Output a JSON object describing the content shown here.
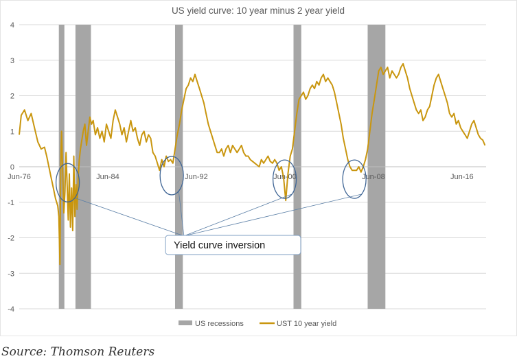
{
  "chart_data": {
    "type": "line",
    "title": "US yield curve: 10 year minus 2 year yield",
    "xlabel": "",
    "ylabel": "",
    "ylim": [
      -4,
      4
    ],
    "y_ticks": [
      4,
      3,
      2,
      1,
      0,
      -1,
      -2,
      -3,
      -4
    ],
    "x_ticks": [
      "Jun-76",
      "Jun-84",
      "Jun-92",
      "Jun-00",
      "Jun-08",
      "Jun-16"
    ],
    "x_tick_years": [
      1976.42,
      1984.42,
      1992.42,
      2000.42,
      2008.42,
      2016.42
    ],
    "xlim": [
      1976.42,
      2018.6
    ],
    "grid": true,
    "legend_position": "bottom",
    "recessions": [
      {
        "start": 1980.0,
        "end": 1980.5
      },
      {
        "start": 1981.5,
        "end": 1982.9
      },
      {
        "start": 1990.5,
        "end": 1991.2
      },
      {
        "start": 2001.2,
        "end": 2001.9
      },
      {
        "start": 2007.9,
        "end": 2009.5
      }
    ],
    "series": [
      {
        "name": "UST 10 year yield",
        "color": "#C9960F",
        "x": [
          1976.42,
          1976.6,
          1976.9,
          1977.2,
          1977.5,
          1977.8,
          1978.1,
          1978.4,
          1978.7,
          1978.9,
          1979.1,
          1979.3,
          1979.5,
          1979.7,
          1979.9,
          1980.0,
          1980.1,
          1980.15,
          1980.2,
          1980.25,
          1980.35,
          1980.45,
          1980.55,
          1980.65,
          1980.75,
          1980.85,
          1980.95,
          1981.05,
          1981.15,
          1981.25,
          1981.35,
          1981.45,
          1981.55,
          1981.65,
          1981.75,
          1981.85,
          1981.95,
          1982.05,
          1982.2,
          1982.35,
          1982.5,
          1982.65,
          1982.8,
          1982.95,
          1983.1,
          1983.3,
          1983.5,
          1983.7,
          1983.9,
          1984.1,
          1984.3,
          1984.5,
          1984.7,
          1984.9,
          1985.1,
          1985.3,
          1985.5,
          1985.7,
          1985.9,
          1986.1,
          1986.3,
          1986.5,
          1986.7,
          1986.9,
          1987.1,
          1987.3,
          1987.5,
          1987.7,
          1987.9,
          1988.1,
          1988.3,
          1988.5,
          1988.7,
          1988.9,
          1989.1,
          1989.3,
          1989.5,
          1989.7,
          1989.9,
          1990.1,
          1990.3,
          1990.5,
          1990.7,
          1990.9,
          1991.1,
          1991.3,
          1991.5,
          1991.7,
          1991.9,
          1992.1,
          1992.3,
          1992.5,
          1992.7,
          1992.9,
          1993.1,
          1993.3,
          1993.5,
          1993.7,
          1993.9,
          1994.1,
          1994.3,
          1994.5,
          1994.7,
          1994.9,
          1995.1,
          1995.3,
          1995.5,
          1995.7,
          1995.9,
          1996.1,
          1996.3,
          1996.5,
          1996.7,
          1996.9,
          1997.1,
          1997.3,
          1997.5,
          1997.7,
          1997.9,
          1998.1,
          1998.3,
          1998.5,
          1998.7,
          1998.9,
          1999.1,
          1999.3,
          1999.5,
          1999.7,
          1999.9,
          2000.1,
          2000.3,
          2000.5,
          2000.7,
          2000.9,
          2001.1,
          2001.3,
          2001.5,
          2001.7,
          2001.9,
          2002.1,
          2002.3,
          2002.5,
          2002.7,
          2002.9,
          2003.1,
          2003.3,
          2003.5,
          2003.7,
          2003.9,
          2004.1,
          2004.3,
          2004.5,
          2004.7,
          2004.9,
          2005.1,
          2005.3,
          2005.5,
          2005.7,
          2005.9,
          2006.1,
          2006.3,
          2006.5,
          2006.7,
          2006.9,
          2007.1,
          2007.3,
          2007.5,
          2007.7,
          2007.9,
          2008.1,
          2008.3,
          2008.5,
          2008.7,
          2008.9,
          2009.1,
          2009.3,
          2009.5,
          2009.7,
          2009.9,
          2010.1,
          2010.3,
          2010.5,
          2010.7,
          2010.9,
          2011.1,
          2011.3,
          2011.5,
          2011.7,
          2011.9,
          2012.1,
          2012.3,
          2012.5,
          2012.7,
          2012.9,
          2013.1,
          2013.3,
          2013.5,
          2013.7,
          2013.9,
          2014.1,
          2014.3,
          2014.5,
          2014.7,
          2014.9,
          2015.1,
          2015.3,
          2015.5,
          2015.7,
          2015.9,
          2016.1,
          2016.3,
          2016.5,
          2016.7,
          2016.9,
          2017.1,
          2017.3,
          2017.5,
          2017.7,
          2017.9,
          2018.1,
          2018.3,
          2018.5
        ],
        "y": [
          0.9,
          1.45,
          1.6,
          1.3,
          1.5,
          1.1,
          0.7,
          0.5,
          0.55,
          0.3,
          0.0,
          -0.3,
          -0.6,
          -0.9,
          -1.1,
          -1.4,
          -2.75,
          -0.8,
          0.5,
          1.0,
          -0.2,
          -1.3,
          -0.7,
          0.4,
          -0.5,
          -1.5,
          -0.2,
          -1.7,
          -0.6,
          -1.8,
          0.3,
          -1.4,
          -0.5,
          -1.2,
          -0.3,
          0.2,
          0.5,
          0.7,
          1.0,
          1.2,
          0.6,
          1.0,
          1.4,
          1.2,
          1.3,
          0.9,
          1.1,
          0.8,
          1.0,
          0.7,
          1.2,
          1.0,
          0.8,
          1.3,
          1.6,
          1.4,
          1.2,
          0.9,
          1.1,
          0.7,
          1.0,
          1.3,
          1.0,
          1.1,
          0.8,
          0.6,
          0.9,
          1.0,
          0.7,
          0.9,
          0.8,
          0.4,
          0.3,
          0.1,
          -0.1,
          0.2,
          0.0,
          0.3,
          0.15,
          0.2,
          0.1,
          0.5,
          0.9,
          1.2,
          1.6,
          1.9,
          2.2,
          2.3,
          2.5,
          2.4,
          2.6,
          2.4,
          2.2,
          2.0,
          1.8,
          1.5,
          1.2,
          1.0,
          0.8,
          0.6,
          0.4,
          0.4,
          0.5,
          0.3,
          0.5,
          0.6,
          0.4,
          0.6,
          0.5,
          0.4,
          0.5,
          0.6,
          0.4,
          0.3,
          0.3,
          0.2,
          0.15,
          0.1,
          0.05,
          0.0,
          0.2,
          0.1,
          0.2,
          0.3,
          0.15,
          0.1,
          0.2,
          0.1,
          -0.1,
          0.0,
          -0.3,
          -0.95,
          -0.2,
          0.3,
          0.5,
          1.0,
          1.5,
          1.9,
          2.0,
          2.1,
          1.9,
          2.0,
          2.2,
          2.3,
          2.2,
          2.4,
          2.3,
          2.5,
          2.6,
          2.4,
          2.5,
          2.4,
          2.3,
          2.1,
          1.8,
          1.5,
          1.2,
          0.8,
          0.5,
          0.2,
          0.0,
          -0.1,
          -0.1,
          -0.1,
          0.0,
          -0.15,
          0.0,
          0.2,
          0.5,
          1.0,
          1.5,
          1.9,
          2.3,
          2.7,
          2.8,
          2.6,
          2.7,
          2.8,
          2.5,
          2.7,
          2.6,
          2.5,
          2.6,
          2.8,
          2.9,
          2.7,
          2.5,
          2.2,
          2.0,
          1.8,
          1.6,
          1.5,
          1.6,
          1.3,
          1.4,
          1.6,
          1.7,
          2.0,
          2.3,
          2.5,
          2.6,
          2.4,
          2.2,
          2.0,
          1.8,
          1.5,
          1.4,
          1.5,
          1.2,
          1.3,
          1.1,
          1.0,
          0.9,
          0.8,
          1.0,
          1.2,
          1.3,
          1.1,
          0.9,
          0.8,
          0.75,
          0.6
        ]
      }
    ],
    "annotation": {
      "label": "Yield curve inversion",
      "ellipses": [
        {
          "x": 1980.8,
          "y": -0.45
        },
        {
          "x": 1990.2,
          "y": -0.25
        },
        {
          "x": 2000.4,
          "y": -0.35
        },
        {
          "x": 2006.7,
          "y": -0.35
        }
      ],
      "anchor": {
        "x": 1991.3,
        "y": -1.95
      }
    }
  },
  "legend": {
    "recessions_label": "US recessions",
    "recessions_color": "#A6A6A6",
    "line_label": "UST 10 year yield"
  },
  "footer": {
    "source": "Source: Thomson Reuters"
  }
}
